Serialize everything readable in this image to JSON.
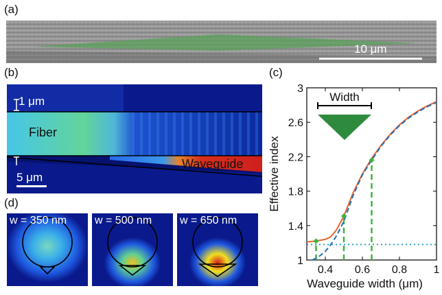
{
  "panels": {
    "a": {
      "label": "(a)",
      "scale_bar": "10 μm"
    },
    "b": {
      "label": "(b)",
      "height_scale": "1 μm",
      "fiber_label": "Fiber",
      "waveguide_label": "Waveguide",
      "scale_bar": "5 μm"
    },
    "c": {
      "label": "(c)",
      "inset_label": "Width"
    },
    "d": {
      "label": "(d)",
      "modes": [
        {
          "label": "w = 350 nm",
          "intensity": 0.25
        },
        {
          "label": "w = 500 nm",
          "intensity": 0.6
        },
        {
          "label": "w = 650 nm",
          "intensity": 1.0
        }
      ]
    }
  },
  "chart_data": {
    "type": "line",
    "xlabel": "Waveguide width (μm)",
    "ylabel": "Effective index",
    "xlim": [
      0.3,
      1.0
    ],
    "ylim": [
      1.0,
      3.0
    ],
    "xticks": [
      0.4,
      0.6,
      0.8,
      1
    ],
    "xtick_labels": [
      "0.4",
      "0.6",
      "0.8",
      "1"
    ],
    "yticks": [
      1,
      1.4,
      1.8,
      2.2,
      2.6,
      3
    ],
    "ytick_labels": [
      "1",
      "1.4",
      "1.8",
      "2.2",
      "2.6",
      "3"
    ],
    "series": [
      {
        "style": "solid",
        "color": "#e8632a",
        "x": [
          0.3,
          0.35,
          0.4,
          0.43,
          0.46,
          0.5,
          0.55,
          0.6,
          0.65,
          0.7,
          0.75,
          0.8,
          0.85,
          0.9,
          0.95,
          1.0
        ],
        "y": [
          1.21,
          1.22,
          1.24,
          1.27,
          1.35,
          1.51,
          1.78,
          2.0,
          2.18,
          2.33,
          2.46,
          2.57,
          2.66,
          2.73,
          2.79,
          2.84
        ]
      },
      {
        "style": "dashed",
        "color": "#1f6fb8",
        "x": [
          0.33,
          0.36,
          0.4,
          0.43,
          0.46,
          0.5,
          0.55,
          0.6,
          0.65,
          0.7,
          0.75,
          0.8,
          0.85,
          0.9,
          0.95,
          1.0
        ],
        "y": [
          1.0,
          1.03,
          1.1,
          1.18,
          1.28,
          1.45,
          1.75,
          1.99,
          2.16,
          2.32,
          2.45,
          2.56,
          2.65,
          2.72,
          2.78,
          2.83
        ]
      },
      {
        "style": "dotted",
        "color": "#2a9dc4",
        "x": [
          0.3,
          1.0
        ],
        "y": [
          1.18,
          1.18
        ]
      }
    ],
    "markers": [
      {
        "x": 0.35,
        "y": 1.22
      },
      {
        "x": 0.5,
        "y": 1.51
      },
      {
        "x": 0.65,
        "y": 2.16
      }
    ],
    "marker_color": "#3cb43c"
  }
}
